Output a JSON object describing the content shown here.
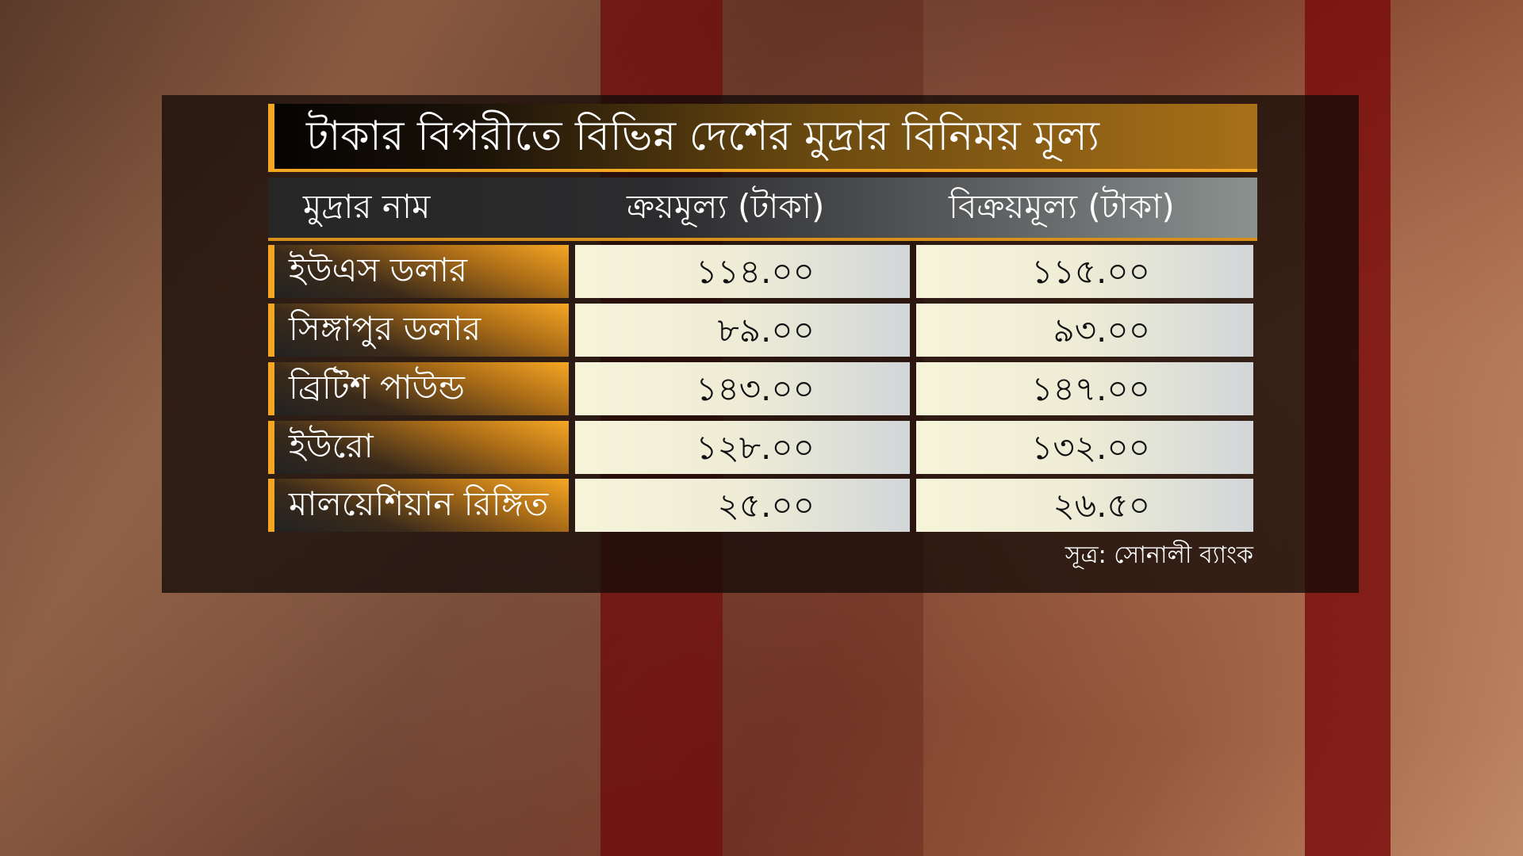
{
  "title": "টাকার বিপরীতে বিভিন্ন দেশের মুদ্রার বিনিময় মূল্য",
  "headers": {
    "name": "মুদ্রার নাম",
    "buy": "ক্রয়মূল্য (টাকা)",
    "sell": "বিক্রয়মূল্য (টাকা)"
  },
  "rows": [
    {
      "name": "ইউএস ডলার",
      "buy": "১১৪.০০",
      "sell": "১১৫.০০"
    },
    {
      "name": "সিঙ্গাপুর ডলার",
      "buy": "৮৯.০০",
      "sell": "৯৩.০০"
    },
    {
      "name": "ব্রিটিশ পাউন্ড",
      "buy": "১৪৩.০০",
      "sell": "১৪৭.০০"
    },
    {
      "name": "ইউরো",
      "buy": "১২৮.০০",
      "sell": "১৩২.০০"
    },
    {
      "name": "মালয়েশিয়ান রিঙ্গিত",
      "buy": "২৫.০০",
      "sell": "২৬.৫০"
    }
  ],
  "source": "সূত্র:  সোনালী ব্যাংক",
  "colors": {
    "accent": "#f5a623",
    "cell": "#f6f4d8",
    "stripe": "#6e0a0a"
  }
}
